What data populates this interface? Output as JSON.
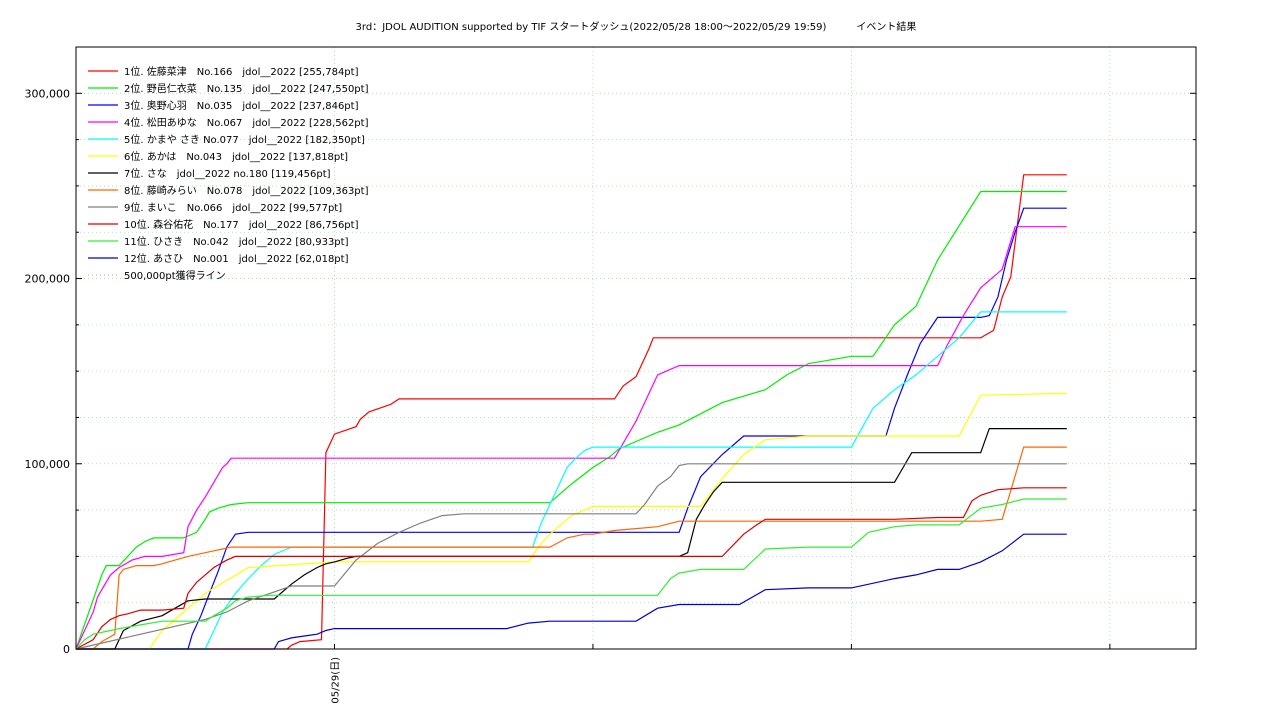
{
  "chart_data": {
    "type": "line",
    "title": "3rd：JDOL AUDITION supported by TIF スタートダッシュ(2022/05/28 18:00〜2022/05/29 19:59)　　　イベント結果",
    "xlabel": "",
    "ylabel": "",
    "x_tick_labels": [
      {
        "x": 6,
        "label": "05/29(日)"
      }
    ],
    "x_range": [
      0,
      25.999
    ],
    "ylim": [
      0,
      325000
    ],
    "y_ticks": [
      0,
      100000,
      200000,
      300000
    ],
    "y_tick_labels": [
      "0",
      "100,000",
      "200,000",
      "300,000"
    ],
    "grid": true,
    "legend_position": "top-left",
    "series": [
      {
        "name": "1位. 佐藤菜津　No.166　jdol__2022 [255,784pt]",
        "color": "#ff0000",
        "x": [
          0,
          4.9,
          5.0,
          5.2,
          5.7,
          5.8,
          6.0,
          6.5,
          6.6,
          6.8,
          7.3,
          7.5,
          8.0,
          12.5,
          12.7,
          13.0,
          13.3,
          13.4,
          14.0,
          21.0,
          21.3,
          21.5,
          21.7,
          22.0,
          23.0
        ],
        "y": [
          0,
          0,
          2000,
          4000,
          5000,
          106000,
          116000,
          120000,
          124000,
          128000,
          132000,
          135000,
          135000,
          135000,
          142000,
          147000,
          162000,
          168000,
          168000,
          168000,
          172000,
          190000,
          201000,
          256000,
          256000
        ]
      },
      {
        "name": "2位. 野邑仁衣菜　No.135　jdol__2022 [247,550pt]",
        "color": "#00ee00",
        "x": [
          0,
          0.3,
          0.6,
          0.7,
          1.0,
          1.2,
          1.4,
          1.6,
          1.8,
          2.0,
          2.2,
          2.5,
          2.8,
          3.0,
          3.1,
          3.3,
          3.6,
          4.0,
          4.5,
          5.0,
          6.0,
          9.0,
          10.0,
          11.0,
          11.5,
          12.0,
          12.4,
          12.6,
          13.0,
          13.5,
          14.0,
          14.5,
          15.0,
          16.0,
          16.5,
          17.0,
          18.0,
          18.5,
          19.0,
          19.5,
          20.0,
          21.0,
          23.0
        ],
        "y": [
          0,
          20000,
          40000,
          45000,
          45000,
          50000,
          55000,
          58000,
          60000,
          60000,
          60000,
          60000,
          63000,
          70000,
          74000,
          76000,
          78000,
          79000,
          79000,
          79000,
          79000,
          79000,
          79000,
          79000,
          89000,
          98000,
          104000,
          108000,
          112000,
          117000,
          121000,
          127000,
          133000,
          140000,
          148000,
          154000,
          158000,
          158000,
          175000,
          185000,
          210000,
          247000,
          247000
        ]
      },
      {
        "name": "3位. 奥野心羽　No.035　jdol__2022 [237,846pt]",
        "color": "#0000ff",
        "x": [
          0,
          2.6,
          2.7,
          2.9,
          3.1,
          3.3,
          3.5,
          3.7,
          4.0,
          8.0,
          12.0,
          13.0,
          13.5,
          14.0,
          14.2,
          14.5,
          15.0,
          15.5,
          16.0,
          18.0,
          18.8,
          19.0,
          19.3,
          19.6,
          20.0,
          20.6,
          21.0,
          21.2,
          21.4,
          21.6,
          21.8,
          22.0,
          23.0
        ],
        "y": [
          0,
          0,
          8000,
          18000,
          30000,
          42000,
          55000,
          62000,
          63000,
          63000,
          63000,
          63000,
          63000,
          63000,
          76000,
          93000,
          105000,
          115000,
          115000,
          115000,
          115000,
          130000,
          148000,
          165000,
          179000,
          179000,
          179000,
          180000,
          190000,
          210000,
          225000,
          238000,
          238000
        ]
      },
      {
        "name": "4位. 松田あゆな　No.067　jdol__2022 [228,562pt]",
        "color": "#ff00ff",
        "x": [
          0,
          0.2,
          0.4,
          0.5,
          0.6,
          0.8,
          1.0,
          1.3,
          1.6,
          2.0,
          2.5,
          2.6,
          2.8,
          3.0,
          3.2,
          3.4,
          3.5,
          3.6,
          4.0,
          8.0,
          12.0,
          12.5,
          13.0,
          13.5,
          14.0,
          18.0,
          20.0,
          20.2,
          20.6,
          21.0,
          21.5,
          21.8,
          23.0
        ],
        "y": [
          0,
          10000,
          20000,
          28000,
          32000,
          40000,
          44000,
          48000,
          50000,
          50000,
          52000,
          66000,
          75000,
          82000,
          90000,
          98000,
          100000,
          103000,
          103000,
          103000,
          103000,
          103000,
          123000,
          148000,
          153000,
          153000,
          153000,
          163000,
          180000,
          195000,
          205000,
          228000,
          228000
        ]
      },
      {
        "name": "5位. かまや さき No.077　jdol__2022 [182,350pt]",
        "color": "#00ffff",
        "x": [
          0,
          3.0,
          3.2,
          3.4,
          3.7,
          4.0,
          4.3,
          4.6,
          5.0,
          6.0,
          8.0,
          9.0,
          10.0,
          10.6,
          10.8,
          11.0,
          11.2,
          11.4,
          11.6,
          11.8,
          12.0,
          13.0,
          16.0,
          18.0,
          18.5,
          19.0,
          19.5,
          20.0,
          20.5,
          21.0,
          23.0
        ],
        "y": [
          0,
          0,
          10000,
          20000,
          30000,
          38000,
          45000,
          51000,
          55000,
          55000,
          55000,
          55000,
          55000,
          55000,
          68000,
          78000,
          88000,
          98000,
          103000,
          107000,
          109000,
          109000,
          109000,
          109000,
          130000,
          140000,
          148000,
          158000,
          168000,
          182000,
          182000
        ]
      },
      {
        "name": "6位. あかは　No.043　jdol__2022 [137,818pt]",
        "color": "#ffff00",
        "x": [
          0,
          1.7,
          2.0,
          2.5,
          3.0,
          4.0,
          6.0,
          9.0,
          10.0,
          10.5,
          10.8,
          11.0,
          11.5,
          12.0,
          13.0,
          14.0,
          14.5,
          15.0,
          15.5,
          16.0,
          17.0,
          18.0,
          20.0,
          20.5,
          21.0,
          23.0
        ],
        "y": [
          0,
          0,
          10000,
          20000,
          30000,
          44000,
          47000,
          47000,
          47000,
          47000,
          57000,
          62000,
          72000,
          77000,
          77000,
          77000,
          77000,
          92000,
          105000,
          113000,
          115000,
          115000,
          115000,
          115000,
          137000,
          138000
        ]
      },
      {
        "name": "7位. さな　jdol__2022 no.180 [119,456pt]",
        "color": "#000000",
        "x": [
          0,
          0.9,
          1.1,
          1.5,
          2.0,
          2.3,
          2.6,
          3.0,
          3.5,
          4.0,
          4.4,
          4.6,
          5.0,
          5.3,
          5.6,
          5.8,
          6.0,
          6.3,
          6.5,
          6.8,
          7.0,
          8.0,
          10.0,
          12.0,
          14.0,
          14.2,
          14.4,
          14.6,
          14.8,
          15.0,
          16.0,
          18.0,
          19.0,
          19.2,
          19.4,
          21.0,
          21.2,
          22.0,
          23.0
        ],
        "y": [
          0,
          0,
          10000,
          15000,
          18000,
          22000,
          26000,
          27000,
          27000,
          27000,
          27000,
          27000,
          35000,
          40000,
          44000,
          46000,
          47000,
          49000,
          50000,
          50000,
          50000,
          50000,
          50000,
          50000,
          50000,
          52000,
          70000,
          78000,
          85000,
          90000,
          90000,
          90000,
          90000,
          98000,
          106000,
          106000,
          119000,
          119000,
          119000
        ]
      },
      {
        "name": "8位. 藤崎みらい　No.078　jdol__2022 [109,363pt]",
        "color": "#ff6600",
        "x": [
          0,
          0.4,
          0.6,
          0.9,
          1.0,
          1.1,
          1.4,
          1.8,
          2.0,
          2.3,
          2.6,
          3.0,
          3.2,
          3.4,
          3.6,
          3.7,
          4.0,
          8.0,
          11.0,
          11.4,
          11.8,
          12.0,
          12.5,
          13.0,
          13.5,
          14.0,
          15.0,
          16.0,
          20.0,
          21.0,
          21.5,
          22.0,
          23.0
        ],
        "y": [
          0,
          0,
          4000,
          8000,
          40000,
          43000,
          45000,
          45000,
          46000,
          48000,
          50000,
          52000,
          53000,
          54000,
          55000,
          55000,
          55000,
          55000,
          55000,
          60000,
          62000,
          62000,
          64000,
          65000,
          66000,
          69000,
          69000,
          69000,
          69000,
          69000,
          70000,
          109000,
          109000
        ]
      },
      {
        "name": "9位. まいこ　No.066　jdol__2022 [99,577pt]",
        "color": "#808080",
        "x": [
          0,
          3.0,
          3.5,
          4.0,
          4.5,
          5.0,
          5.5,
          5.8,
          6.0,
          6.5,
          7.0,
          7.5,
          8.0,
          8.5,
          9.0,
          10.0,
          12.0,
          13.0,
          13.2,
          13.5,
          13.8,
          14.0,
          14.2,
          15.0,
          18.0,
          22.0,
          23.0
        ],
        "y": [
          0,
          16000,
          20000,
          26000,
          30000,
          34000,
          34000,
          34000,
          34000,
          48000,
          57000,
          63000,
          68000,
          72000,
          73000,
          73000,
          73000,
          73000,
          78000,
          88000,
          93000,
          99000,
          100000,
          100000,
          100000,
          100000,
          100000
        ]
      },
      {
        "name": "10位. 森谷佑花　No.177　jdol__2022 [86,756pt]",
        "color": "#dd0000",
        "x": [
          0,
          0.4,
          0.6,
          0.8,
          1.0,
          1.2,
          1.5,
          2.0,
          2.5,
          2.6,
          2.8,
          3.0,
          3.2,
          3.5,
          3.7,
          4.0,
          4.5,
          5.0,
          8.0,
          10.0,
          12.0,
          15.0,
          15.5,
          15.8,
          16.0,
          17.0,
          19.0,
          20.0,
          20.6,
          20.8,
          21.0,
          21.4,
          22.0,
          23.0
        ],
        "y": [
          0,
          5000,
          12000,
          16000,
          18000,
          19000,
          21000,
          21000,
          22000,
          30000,
          36000,
          40000,
          44000,
          48000,
          50000,
          50000,
          50000,
          50000,
          50000,
          50000,
          50000,
          50000,
          62000,
          67000,
          70000,
          70000,
          70000,
          71000,
          71000,
          80000,
          83000,
          86000,
          87000,
          87000
        ]
      },
      {
        "name": "11位. ひさき　No.042　jdol__2022 [80,933pt]",
        "color": "#33ee33",
        "x": [
          0,
          0.2,
          0.4,
          0.8,
          1.0,
          1.5,
          2.0,
          2.5,
          3.0,
          3.2,
          3.5,
          3.7,
          4.0,
          4.5,
          5.0,
          8.0,
          12.0,
          13.0,
          13.5,
          13.8,
          14.0,
          14.5,
          15.0,
          15.5,
          16.0,
          17.0,
          18.0,
          18.4,
          19.0,
          19.5,
          20.0,
          20.5,
          21.0,
          21.5,
          22.0,
          23.0
        ],
        "y": [
          0,
          5000,
          8000,
          10000,
          11000,
          13000,
          15000,
          15000,
          15000,
          18000,
          22000,
          26000,
          28000,
          29000,
          29000,
          29000,
          29000,
          29000,
          29000,
          38000,
          41000,
          43000,
          43000,
          43000,
          54000,
          55000,
          55000,
          63000,
          66000,
          67000,
          67000,
          67000,
          76000,
          78000,
          81000,
          81000
        ]
      },
      {
        "name": "12位. あさひ　No.001　jdol__2022 [62,018pt]",
        "color": "#0000cc",
        "x": [
          0,
          4.6,
          4.7,
          5.0,
          5.3,
          5.6,
          5.8,
          6.0,
          8.0,
          10.0,
          10.5,
          11.0,
          12.0,
          13.0,
          13.5,
          14.0,
          15.0,
          15.4,
          16.0,
          17.0,
          18.0,
          19.0,
          19.5,
          20.0,
          20.5,
          21.0,
          21.5,
          22.0,
          23.0
        ],
        "y": [
          0,
          0,
          4000,
          6000,
          7000,
          8000,
          10000,
          11000,
          11000,
          11000,
          14000,
          15000,
          15000,
          15000,
          22000,
          24000,
          24000,
          24000,
          32000,
          33000,
          33000,
          38000,
          40000,
          43000,
          43000,
          47000,
          53000,
          62000,
          62000
        ]
      },
      {
        "name": "500,000pt獲得ライン",
        "color": "#ff9999",
        "dashed": true,
        "x": [],
        "y": []
      }
    ]
  }
}
